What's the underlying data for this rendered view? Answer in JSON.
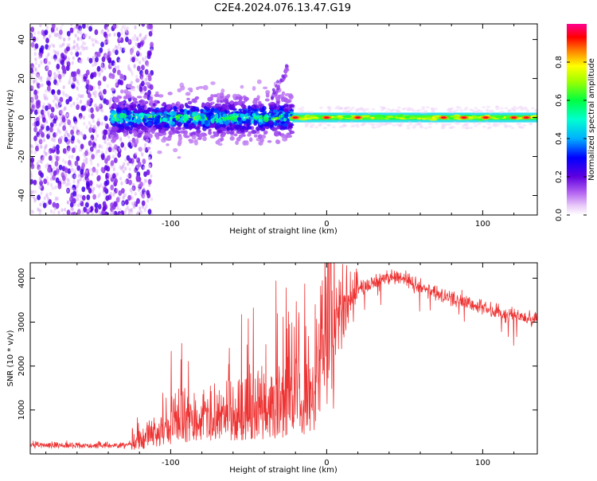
{
  "title": "C2E4.2024.076.13.47.G19",
  "colors": {
    "snr_line": "#ee3333",
    "background": "#ffffff",
    "axis": "#000000"
  },
  "chart_data": [
    {
      "type": "heatmap",
      "name": "spectrogram",
      "xlabel": "Height of straight line (km)",
      "ylabel": "Frequency (Hz)",
      "xlim": [
        -190,
        135
      ],
      "ylim": [
        -50,
        48
      ],
      "xticks": [
        -100,
        0,
        100
      ],
      "xtick_labels": [
        "-100",
        "0",
        "100"
      ],
      "yticks": [
        -40,
        -20,
        0,
        20,
        40
      ],
      "ytick_labels": [
        "-40",
        "-20",
        "0",
        "20",
        "40"
      ],
      "colorbar": {
        "label": "Normalized spectral amplitude",
        "range": [
          0,
          1
        ],
        "ticks": [
          0.0,
          0.2,
          0.4,
          0.6,
          0.8
        ],
        "tick_labels": [
          "0.0",
          "0.2",
          "0.4",
          "0.6",
          "0.8"
        ],
        "stops": [
          {
            "v": 0.0,
            "color": "#ffffff"
          },
          {
            "v": 0.05,
            "color": "#e8c8f8"
          },
          {
            "v": 0.12,
            "color": "#b060f0"
          },
          {
            "v": 0.2,
            "color": "#6000e0"
          },
          {
            "v": 0.3,
            "color": "#0000ff"
          },
          {
            "v": 0.4,
            "color": "#00b0ff"
          },
          {
            "v": 0.5,
            "color": "#00ffd0"
          },
          {
            "v": 0.6,
            "color": "#00ff40"
          },
          {
            "v": 0.7,
            "color": "#a0ff00"
          },
          {
            "v": 0.78,
            "color": "#ffff00"
          },
          {
            "v": 0.86,
            "color": "#ff8000"
          },
          {
            "v": 0.93,
            "color": "#ff0000"
          },
          {
            "v": 1.0,
            "color": "#ff0090"
          }
        ]
      },
      "regions": [
        {
          "label": "noise",
          "x_range": [
            -190,
            -120
          ],
          "freq_range": [
            -50,
            48
          ],
          "amplitude": 0.2
        },
        {
          "label": "turbulent tracking",
          "x_range": [
            -138,
            -22
          ],
          "freq_center": 0,
          "freq_spread": 6,
          "amplitude": 0.45
        },
        {
          "label": "diverging branch",
          "x_range": [
            -35,
            -25
          ],
          "freq_range": [
            10,
            25
          ],
          "amplitude": 0.2
        },
        {
          "label": "stable tone",
          "x_range": [
            -22,
            135
          ],
          "freq_center": 0,
          "freq_spread": 1.5,
          "amplitude": 0.75
        },
        {
          "label": "peaks",
          "x_values": [
            -20,
            0,
            20,
            75,
            88,
            102,
            120,
            128
          ],
          "amplitude": 0.95
        }
      ]
    },
    {
      "type": "line",
      "name": "snr",
      "xlabel": "Height of straight line (km)",
      "ylabel": "SNR (10 * v/v)",
      "xlim": [
        -190,
        135
      ],
      "ylim": [
        0,
        4350
      ],
      "xticks": [
        -100,
        0,
        100
      ],
      "xtick_labels": [
        "-100",
        "0",
        "100"
      ],
      "yticks": [
        1000,
        2000,
        3000,
        4000
      ],
      "ytick_labels": [
        "1000",
        "2000",
        "3000",
        "4000"
      ],
      "series": [
        {
          "name": "SNR",
          "x": [
            -190,
            -170,
            -150,
            -130,
            -120,
            -110,
            -100,
            -90,
            -80,
            -70,
            -60,
            -50,
            -40,
            -30,
            -20,
            -10,
            0,
            10,
            20,
            30,
            40,
            50,
            60,
            70,
            80,
            90,
            100,
            110,
            120,
            135
          ],
          "y": [
            200,
            200,
            190,
            200,
            280,
            430,
            650,
            750,
            750,
            780,
            850,
            900,
            950,
            1050,
            1100,
            1250,
            2500,
            3400,
            3700,
            3900,
            4050,
            4000,
            3800,
            3650,
            3550,
            3450,
            3350,
            3200,
            3150,
            3050
          ]
        }
      ]
    }
  ]
}
